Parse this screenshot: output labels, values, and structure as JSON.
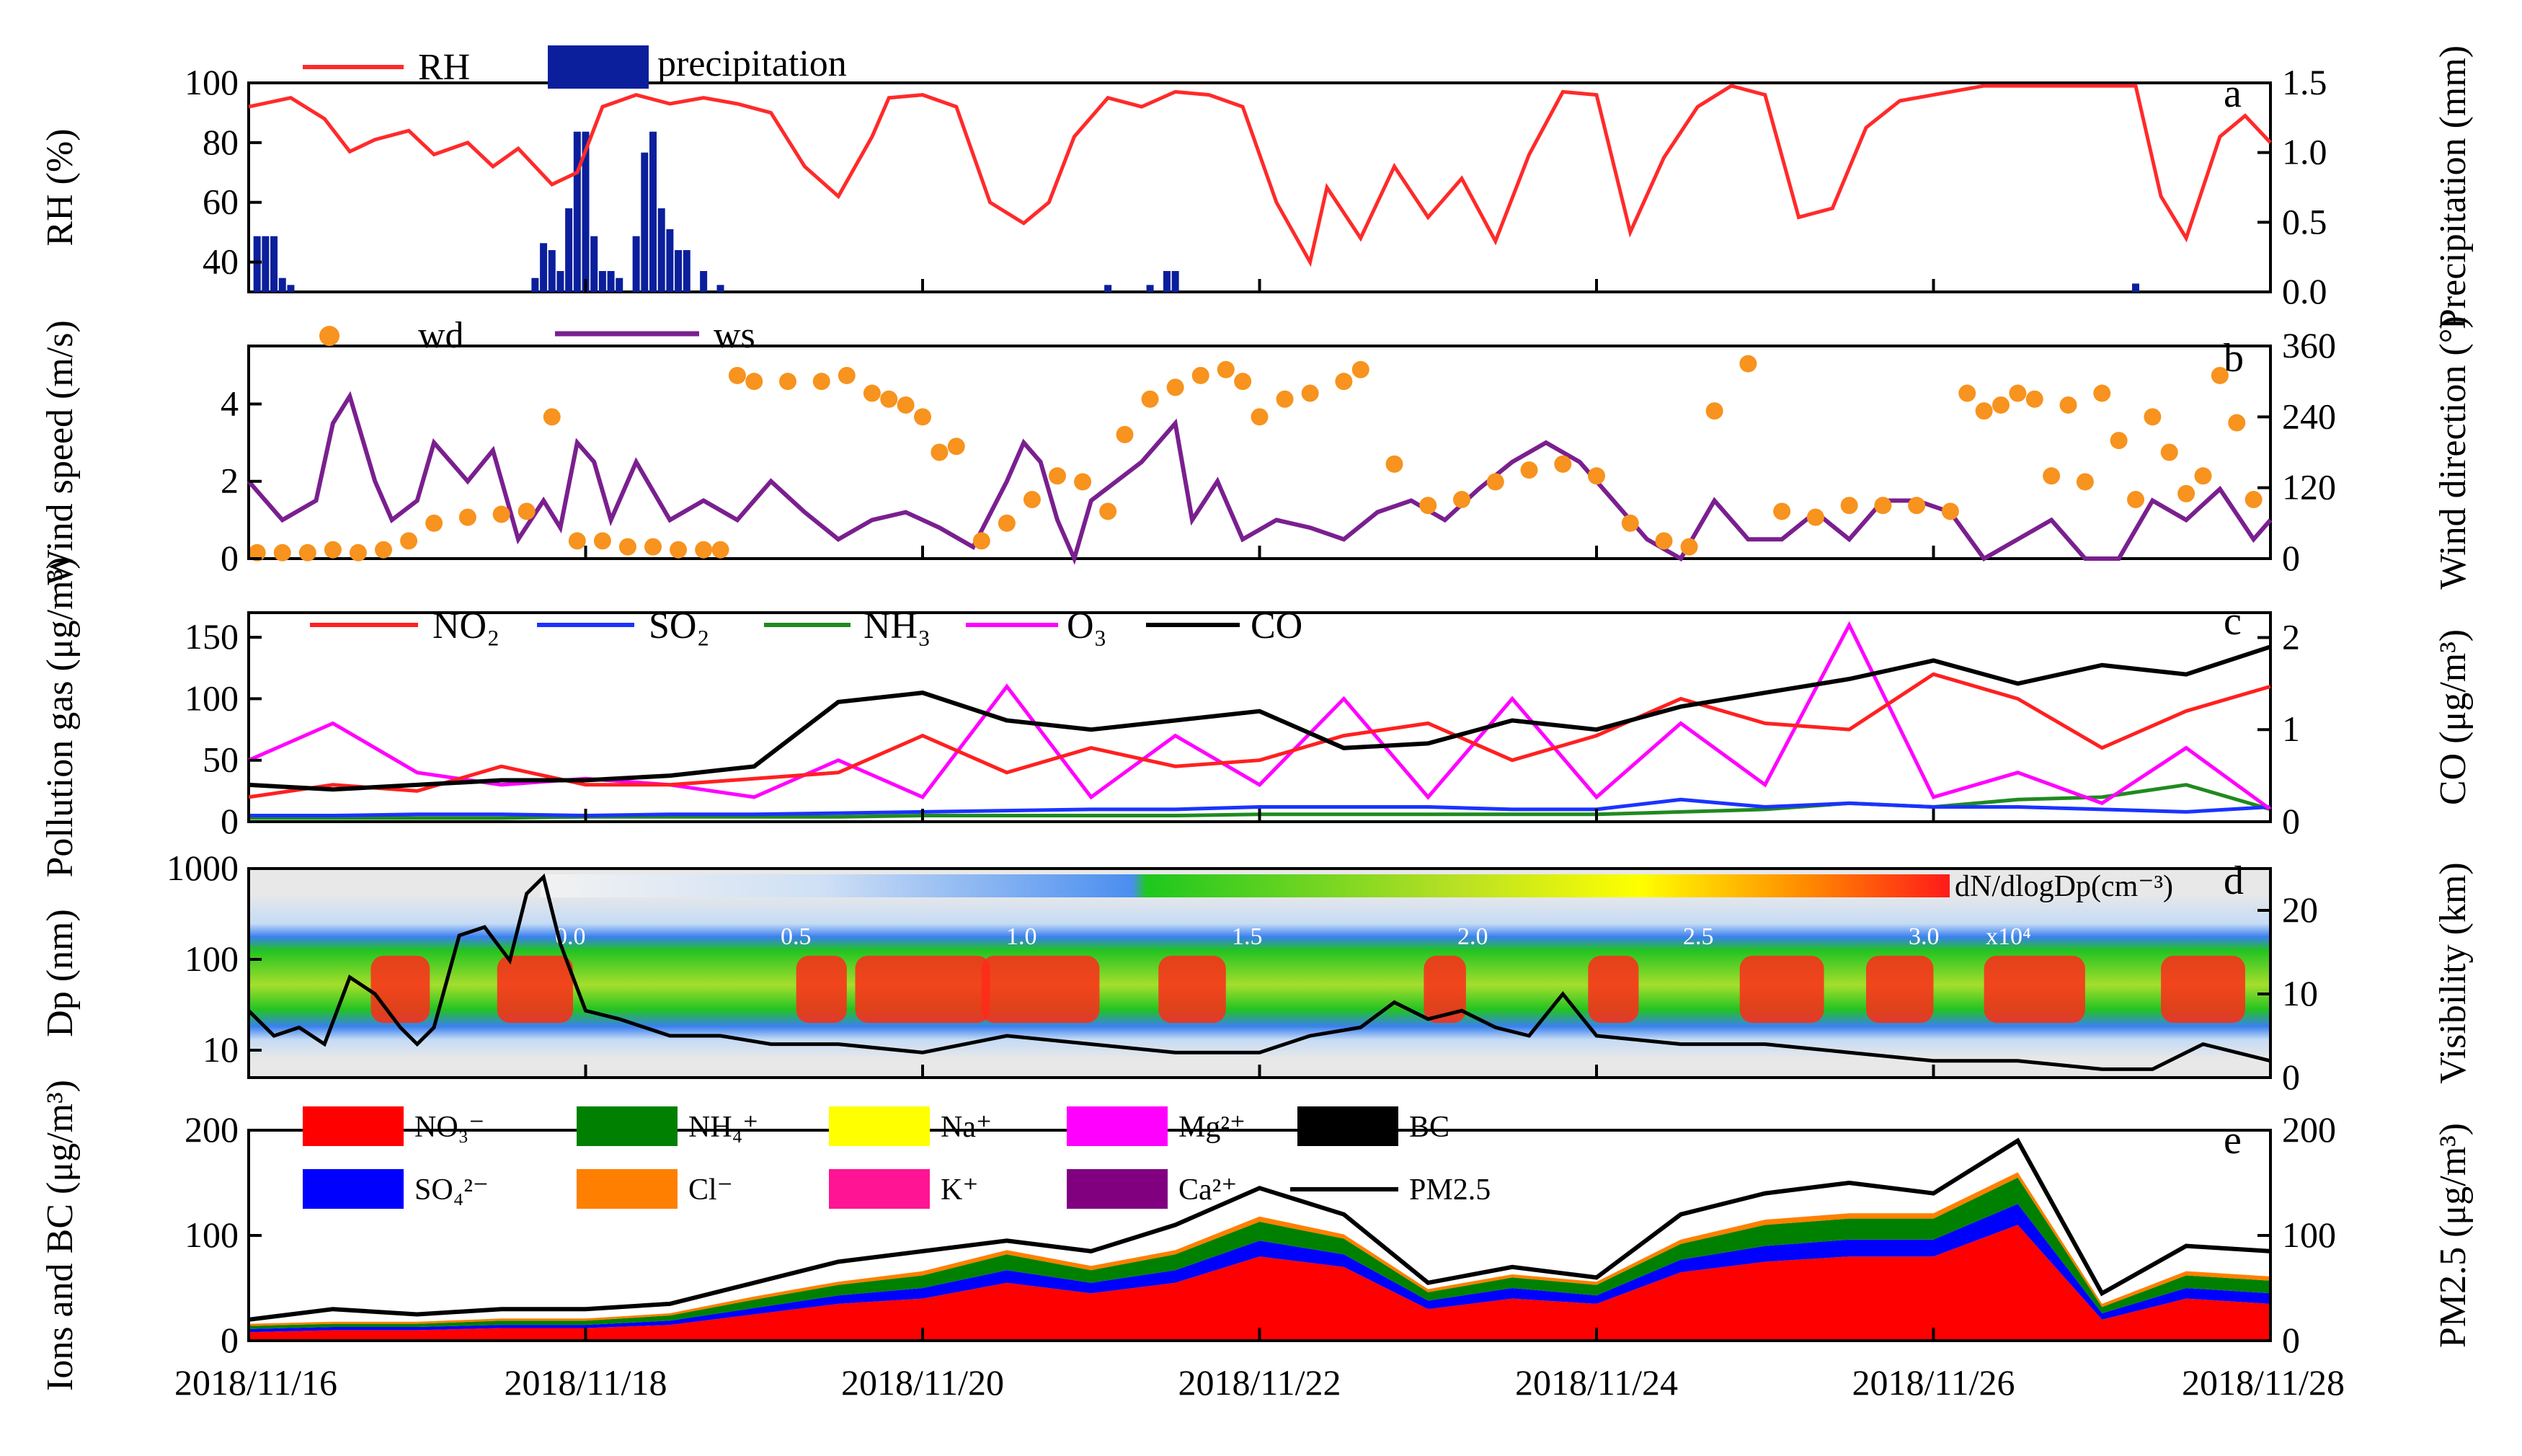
{
  "figure": {
    "x_axis": {
      "ticks": [
        "2018/11/16",
        "2018/11/18",
        "2018/11/20",
        "2018/11/22",
        "2018/11/24",
        "2018/11/26",
        "2018/11/28"
      ],
      "range_days": [
        0,
        12
      ]
    }
  },
  "chart_data": [
    {
      "panel": "a",
      "type": "line+bar",
      "ylabel_left": "RH (%)",
      "ylabel_right": "Precipitation (mm)",
      "ylim_left": [
        30,
        100
      ],
      "ylim_right": [
        0,
        1.5
      ],
      "yticks_left": [
        "40",
        "60",
        "80",
        "100"
      ],
      "yticks_right": [
        "0.0",
        "0.5",
        "1.0",
        "1.5"
      ],
      "legend": {
        "rh": "RH",
        "precip": "precipitation"
      },
      "colors": {
        "rh": "#ff2a2a",
        "precip": "#0b1f9c"
      },
      "rh": {
        "x": [
          0,
          0.25,
          0.45,
          0.6,
          0.75,
          0.95,
          1.1,
          1.3,
          1.45,
          1.6,
          1.8,
          1.95,
          2.1,
          2.3,
          2.5,
          2.7,
          2.9,
          3.1,
          3.3,
          3.5,
          3.7,
          3.8,
          4.0,
          4.2,
          4.4,
          4.6,
          4.75,
          4.9,
          5.1,
          5.3,
          5.5,
          5.7,
          5.9,
          6.1,
          6.3,
          6.4,
          6.6,
          6.8,
          7.0,
          7.2,
          7.4,
          7.6,
          7.8,
          8.0,
          8.2,
          8.4,
          8.6,
          8.8,
          9.0,
          9.2,
          9.4,
          9.6,
          9.8,
          10.0,
          10.3,
          10.6,
          10.8,
          11.0,
          11.2,
          11.35,
          11.5,
          11.7,
          11.85,
          12.0
        ],
        "values": [
          92,
          95,
          88,
          77,
          81,
          84,
          76,
          80,
          72,
          78,
          66,
          70,
          92,
          96,
          93,
          95,
          93,
          90,
          72,
          62,
          82,
          95,
          96,
          92,
          60,
          53,
          60,
          82,
          95,
          92,
          97,
          96,
          92,
          60,
          40,
          65,
          48,
          72,
          55,
          68,
          47,
          76,
          97,
          96,
          50,
          75,
          92,
          99,
          96,
          55,
          58,
          85,
          94,
          96,
          99,
          99,
          99,
          99,
          99,
          62,
          48,
          82,
          89,
          80
        ]
      },
      "precipitation": {
        "x": [
          0.05,
          0.1,
          0.15,
          0.2,
          0.25,
          1.7,
          1.75,
          1.8,
          1.85,
          1.9,
          1.95,
          2.0,
          2.05,
          2.1,
          2.15,
          2.2,
          2.3,
          2.35,
          2.4,
          2.45,
          2.5,
          2.55,
          2.6,
          2.7,
          2.8,
          5.1,
          5.35,
          5.45,
          5.5,
          11.2
        ],
        "values": [
          0.4,
          0.4,
          0.4,
          0.1,
          0.05,
          0.1,
          0.35,
          0.3,
          0.15,
          0.6,
          1.15,
          1.15,
          0.4,
          0.15,
          0.15,
          0.1,
          0.4,
          1.0,
          1.15,
          0.6,
          0.45,
          0.3,
          0.3,
          0.15,
          0.05,
          0.05,
          0.05,
          0.15,
          0.15,
          0.06
        ]
      }
    },
    {
      "panel": "b",
      "type": "line+scatter",
      "ylabel_left": "Wind speed (m/s)",
      "ylabel_right": "Wind direction (°)",
      "ylim_left": [
        0,
        5.5
      ],
      "ylim_right": [
        0,
        360
      ],
      "yticks_left": [
        "0",
        "2",
        "4"
      ],
      "yticks_right": [
        "0",
        "120",
        "240",
        "360"
      ],
      "legend": {
        "wd": "wd",
        "ws": "ws"
      },
      "colors": {
        "wd": "#f7931e",
        "ws": "#7a1f8f"
      },
      "ws": {
        "x": [
          0,
          0.2,
          0.4,
          0.5,
          0.6,
          0.75,
          0.85,
          1.0,
          1.1,
          1.3,
          1.45,
          1.6,
          1.75,
          1.85,
          1.95,
          2.05,
          2.15,
          2.3,
          2.5,
          2.7,
          2.9,
          3.1,
          3.3,
          3.5,
          3.7,
          3.9,
          4.1,
          4.3,
          4.5,
          4.6,
          4.7,
          4.8,
          4.9,
          5.0,
          5.15,
          5.3,
          5.5,
          5.6,
          5.75,
          5.9,
          6.1,
          6.3,
          6.5,
          6.7,
          6.9,
          7.1,
          7.3,
          7.5,
          7.7,
          7.9,
          8.1,
          8.3,
          8.5,
          8.7,
          8.9,
          9.1,
          9.3,
          9.5,
          9.7,
          9.9,
          10.1,
          10.3,
          10.5,
          10.7,
          10.9,
          11.1,
          11.3,
          11.5,
          11.7,
          11.9,
          12.0
        ],
        "values": [
          2.0,
          1.0,
          1.5,
          3.5,
          4.2,
          2.0,
          1.0,
          1.5,
          3.0,
          2.0,
          2.8,
          0.5,
          1.5,
          0.8,
          3.0,
          2.5,
          1.0,
          2.5,
          1.0,
          1.5,
          1.0,
          2.0,
          1.2,
          0.5,
          1.0,
          1.2,
          0.8,
          0.3,
          2.0,
          3.0,
          2.5,
          1.0,
          0.0,
          1.5,
          2.0,
          2.5,
          3.5,
          1.0,
          2.0,
          0.5,
          1.0,
          0.8,
          0.5,
          1.2,
          1.5,
          1.0,
          1.8,
          2.5,
          3.0,
          2.5,
          1.5,
          0.5,
          0.0,
          1.5,
          0.5,
          0.5,
          1.2,
          0.5,
          1.5,
          1.5,
          1.2,
          0.0,
          0.5,
          1.0,
          0.0,
          0.0,
          1.5,
          1.0,
          1.8,
          0.5,
          1.0
        ]
      },
      "wd": {
        "x": [
          0.05,
          0.2,
          0.35,
          0.5,
          0.65,
          0.8,
          0.95,
          1.1,
          1.3,
          1.5,
          1.65,
          1.8,
          1.95,
          2.1,
          2.25,
          2.4,
          2.55,
          2.7,
          2.8,
          2.9,
          3.0,
          3.2,
          3.4,
          3.55,
          3.7,
          3.8,
          3.9,
          4.0,
          4.1,
          4.2,
          4.35,
          4.5,
          4.65,
          4.8,
          4.95,
          5.1,
          5.2,
          5.35,
          5.5,
          5.65,
          5.8,
          5.9,
          6.0,
          6.15,
          6.3,
          6.5,
          6.6,
          6.8,
          7.0,
          7.2,
          7.4,
          7.6,
          7.8,
          8.0,
          8.2,
          8.4,
          8.55,
          8.7,
          8.9,
          9.1,
          9.3,
          9.5,
          9.7,
          9.9,
          10.1,
          10.2,
          10.3,
          10.4,
          10.5,
          10.6,
          10.7,
          10.8,
          10.9,
          11.0,
          11.1,
          11.2,
          11.3,
          11.4,
          11.5,
          11.6,
          11.7,
          11.8,
          11.9
        ],
        "values": [
          10,
          10,
          10,
          15,
          10,
          15,
          30,
          60,
          70,
          75,
          80,
          240,
          30,
          30,
          20,
          20,
          15,
          15,
          15,
          310,
          300,
          300,
          300,
          310,
          280,
          270,
          260,
          240,
          180,
          190,
          30,
          60,
          100,
          140,
          130,
          80,
          210,
          270,
          290,
          310,
          320,
          300,
          240,
          270,
          280,
          300,
          320,
          160,
          90,
          100,
          130,
          150,
          160,
          140,
          60,
          30,
          20,
          250,
          330,
          80,
          70,
          90,
          90,
          90,
          80,
          280,
          250,
          260,
          280,
          270,
          140,
          260,
          130,
          280,
          200,
          100,
          240,
          180,
          110,
          140,
          310,
          230,
          100
        ]
      }
    },
    {
      "panel": "c",
      "type": "line",
      "ylabel_left": "Pollution gas (μg/m³)",
      "ylabel_right": "CO (μg/m³)",
      "ylim_left": [
        0,
        170
      ],
      "ylim_right": [
        0,
        2.27
      ],
      "yticks_left": [
        "0",
        "50",
        "100",
        "150"
      ],
      "yticks_right": [
        "0",
        "1",
        "2"
      ],
      "series_names": [
        "NO₂",
        "SO₂",
        "NH₃",
        "O₃",
        "CO"
      ],
      "colors": {
        "NO2": "#ff2020",
        "SO2": "#1a33ff",
        "NH3": "#1f8a1f",
        "O3": "#ff00ff",
        "CO": "#000000"
      },
      "x": [
        0,
        0.5,
        1,
        1.5,
        2,
        2.5,
        3,
        3.5,
        4,
        4.5,
        5,
        5.5,
        6,
        6.5,
        7,
        7.5,
        8,
        8.5,
        9,
        9.5,
        10,
        10.5,
        11,
        11.5,
        12
      ],
      "NO2": [
        20,
        30,
        25,
        45,
        30,
        30,
        35,
        40,
        70,
        40,
        60,
        45,
        50,
        70,
        80,
        50,
        70,
        100,
        80,
        75,
        120,
        100,
        60,
        90,
        110
      ],
      "SO2": [
        5,
        5,
        6,
        6,
        5,
        6,
        6,
        7,
        8,
        9,
        10,
        10,
        12,
        12,
        12,
        10,
        10,
        18,
        12,
        15,
        12,
        12,
        10,
        8,
        12
      ],
      "NH3": [
        3,
        3,
        3,
        3,
        4,
        4,
        4,
        4,
        5,
        5,
        5,
        5,
        6,
        6,
        6,
        6,
        6,
        8,
        10,
        15,
        12,
        18,
        20,
        30,
        10
      ],
      "O3": [
        50,
        80,
        40,
        30,
        35,
        30,
        20,
        50,
        20,
        110,
        20,
        70,
        30,
        100,
        20,
        100,
        20,
        80,
        30,
        160,
        20,
        40,
        15,
        60,
        10
      ],
      "CO": [
        0.4,
        0.35,
        0.4,
        0.45,
        0.45,
        0.5,
        0.6,
        1.3,
        1.4,
        1.1,
        1.0,
        1.1,
        1.2,
        0.8,
        0.85,
        1.1,
        1.0,
        1.25,
        1.4,
        1.55,
        1.75,
        1.5,
        1.7,
        1.6,
        1.9
      ]
    },
    {
      "panel": "d",
      "type": "heatmap+line",
      "ylabel_left": "Dp (nm)",
      "ylabel_right": "Visibility (km)",
      "ylim_left_log": [
        5,
        1000
      ],
      "ylim_right": [
        0,
        25
      ],
      "yticks_left": [
        "10",
        "100",
        "1000"
      ],
      "yticks_right": [
        "0",
        "10",
        "20"
      ],
      "colorbar": {
        "label": "dN/dlogDp(cm⁻³)",
        "ticks": [
          "0.0",
          "0.5",
          "1.0",
          "1.5",
          "2.0",
          "2.5",
          "3.0"
        ],
        "suffix": "x10⁴"
      },
      "visibility": {
        "x": [
          0,
          0.15,
          0.3,
          0.45,
          0.6,
          0.75,
          0.9,
          1.0,
          1.1,
          1.25,
          1.4,
          1.55,
          1.65,
          1.75,
          1.85,
          2.0,
          2.2,
          2.5,
          2.8,
          3.1,
          3.5,
          4.0,
          4.5,
          5.0,
          5.5,
          6.0,
          6.3,
          6.6,
          6.8,
          7.0,
          7.2,
          7.4,
          7.6,
          7.8,
          8.0,
          8.5,
          9.0,
          9.5,
          10.0,
          10.5,
          11.0,
          11.3,
          11.6,
          12.0
        ],
        "values": [
          8,
          5,
          6,
          4,
          12,
          10,
          6,
          4,
          6,
          17,
          18,
          14,
          22,
          24,
          16,
          8,
          7,
          5,
          5,
          4,
          4,
          3,
          5,
          4,
          3,
          3,
          5,
          6,
          9,
          7,
          8,
          6,
          5,
          10,
          5,
          4,
          4,
          3,
          2,
          2,
          1,
          1,
          4,
          2
        ]
      }
    },
    {
      "panel": "e",
      "type": "area+line",
      "ylabel_left": "Ions and BC (μg/m³)",
      "ylabel_right": "PM2.5 (μg/m³)",
      "ylim_left": [
        0,
        200
      ],
      "ylim_right": [
        0,
        200
      ],
      "yticks_left": [
        "0",
        "100",
        "200"
      ],
      "yticks_right": [
        "0",
        "100",
        "200"
      ],
      "legend_items": [
        {
          "key": "NO3",
          "label": "NO₃⁻",
          "color": "#ff0000"
        },
        {
          "key": "NH4",
          "label": "NH₄⁺",
          "color": "#008000"
        },
        {
          "key": "Na",
          "label": "Na⁺",
          "color": "#ffff00"
        },
        {
          "key": "Mg",
          "label": "Mg²⁺",
          "color": "#ff00ff"
        },
        {
          "key": "BC",
          "label": "BC",
          "color": "#000000"
        },
        {
          "key": "SO4",
          "label": "SO₄²⁻",
          "color": "#0000ff"
        },
        {
          "key": "Cl",
          "label": "Cl⁻",
          "color": "#ff8000"
        },
        {
          "key": "K",
          "label": "K⁺",
          "color": "#ff1493"
        },
        {
          "key": "Ca",
          "label": "Ca²⁺",
          "color": "#800080"
        },
        {
          "key": "PM25",
          "label": "PM2.5",
          "color": "#000000"
        }
      ],
      "x": [
        0,
        0.5,
        1,
        1.5,
        2,
        2.5,
        3,
        3.5,
        4,
        4.5,
        5,
        5.5,
        6,
        6.5,
        7,
        7.5,
        8,
        8.5,
        9,
        9.5,
        10,
        10.5,
        11,
        11.5,
        12
      ],
      "NO3": [
        8,
        10,
        10,
        12,
        12,
        15,
        25,
        35,
        40,
        55,
        45,
        55,
        80,
        70,
        30,
        40,
        35,
        65,
        75,
        80,
        80,
        110,
        20,
        40,
        35
      ],
      "SO4": [
        3,
        3,
        3,
        3,
        3,
        4,
        6,
        8,
        10,
        12,
        10,
        12,
        15,
        12,
        8,
        10,
        8,
        12,
        15,
        16,
        16,
        20,
        6,
        10,
        10
      ],
      "NH4": [
        3,
        3,
        3,
        4,
        4,
        5,
        8,
        10,
        12,
        15,
        12,
        15,
        18,
        15,
        8,
        10,
        10,
        15,
        20,
        20,
        20,
        25,
        6,
        12,
        12
      ],
      "other": [
        2,
        2,
        2,
        2,
        2,
        2,
        3,
        3,
        4,
        4,
        4,
        4,
        5,
        4,
        3,
        3,
        3,
        4,
        5,
        5,
        5,
        5,
        3,
        4,
        4
      ],
      "PM25": [
        20,
        30,
        25,
        30,
        30,
        35,
        55,
        75,
        85,
        95,
        85,
        110,
        145,
        120,
        55,
        70,
        60,
        120,
        140,
        150,
        140,
        190,
        45,
        90,
        85
      ]
    }
  ]
}
